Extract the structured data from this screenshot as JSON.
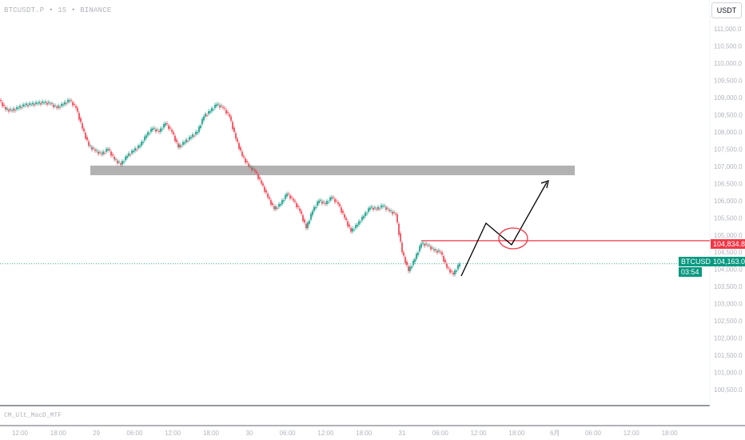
{
  "header": {
    "symbol": "BTCUSDT.P • 15 • BINANCE",
    "currency": "USDT"
  },
  "indicator": {
    "name": "CM_Ult_MacD_MTF"
  },
  "badges": {
    "level": "104,834.8",
    "symbol": "BTCUSDT.P",
    "price": "104,163.0",
    "countdown": "03:54"
  },
  "chart_data": {
    "type": "candlestick",
    "interval": "15",
    "exchange": "BINANCE",
    "ylim": [
      100300,
      111300
    ],
    "price_ticks": [
      "111,000.0",
      "110,500.0",
      "110,000.0",
      "109,500.0",
      "109,000.0",
      "108,500.0",
      "108,000.0",
      "107,500.0",
      "107,000.0",
      "106,500.0",
      "106,000.0",
      "105,500.0",
      "105,000.0",
      "104,500.0",
      "104,000.0",
      "103,500.0",
      "103,000.0",
      "102,500.0",
      "102,000.0",
      "101,500.0",
      "101,000.0",
      "100,500.0"
    ],
    "time_ticks": [
      "12:00",
      "18:00",
      "29",
      "06:00",
      "12:00",
      "18:00",
      "30",
      "06:00",
      "12:00",
      "18:00",
      "31",
      "06:00",
      "12:00",
      "18:00",
      "6月",
      "06:00",
      "12:00",
      "18:00"
    ],
    "hourly_closes": [
      108928,
      108650,
      108620,
      108700,
      108780,
      108800,
      108830,
      108850,
      108820,
      108700,
      108800,
      108920,
      108700,
      108100,
      107600,
      107450,
      107350,
      107500,
      107200,
      107050,
      107300,
      107450,
      107600,
      107900,
      108100,
      108000,
      108250,
      108000,
      107550,
      107700,
      107850,
      108000,
      108450,
      108600,
      108800,
      108700,
      108450,
      107800,
      107300,
      107000,
      106850,
      106500,
      106100,
      105750,
      105900,
      106200,
      106000,
      105700,
      105200,
      105700,
      106000,
      105900,
      106100,
      105900,
      105500,
      105100,
      105300,
      105550,
      105800,
      105750,
      105850,
      105700,
      105600,
      104500,
      103950,
      104300,
      104750,
      104700,
      104550,
      104500,
      104050,
      103850,
      104163
    ],
    "last_price": 104163.0,
    "zone": {
      "from": 106740,
      "to": 107020,
      "color": "#b2b2b2"
    },
    "horizontal_level": {
      "price": 104834.8,
      "color": "#f23645"
    },
    "colors": {
      "up": "#089981",
      "down": "#f23645",
      "annotation": "#000000"
    }
  }
}
